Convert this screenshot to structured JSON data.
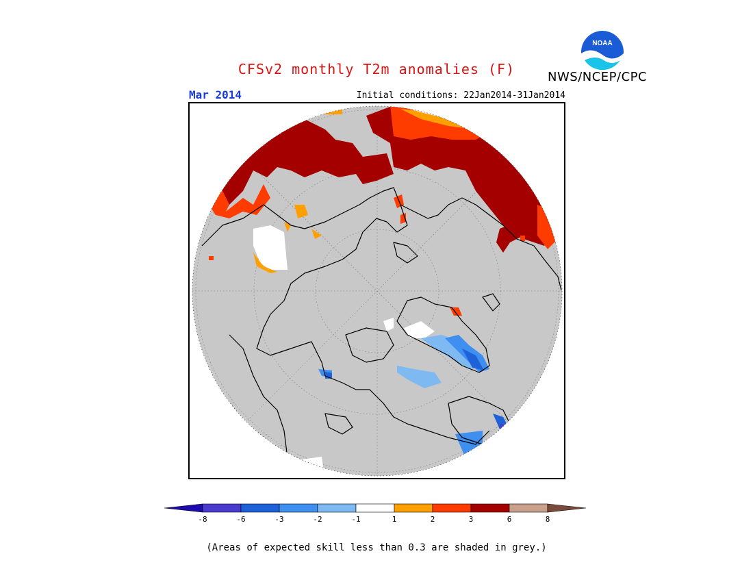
{
  "title": "CFSv2 monthly T2m anomalies (F)",
  "agency": "NWS/NCEP/CPC",
  "logo": {
    "icon": "noaa-logo",
    "text": "NOAA",
    "color": "#1a5bd6"
  },
  "month": "Mar 2014",
  "initial_conditions": "Initial conditions: 22Jan2014-31Jan2014",
  "map": {
    "projection": "north-polar-stereographic",
    "background_color": "#c8c8c8",
    "graticule": "dotted"
  },
  "legend": {
    "ticks": [
      "-8",
      "-6",
      "-3",
      "-2",
      "-1",
      "1",
      "2",
      "3",
      "6",
      "8"
    ],
    "bins": [
      {
        "range": "< -8",
        "color": "#1e0bb0"
      },
      {
        "range": "-8 to -6",
        "color": "#4b3cd0"
      },
      {
        "range": "-6 to -3",
        "color": "#1f62d8"
      },
      {
        "range": "-3 to -2",
        "color": "#3f8ff0"
      },
      {
        "range": "-2 to -1",
        "color": "#7fb9f2"
      },
      {
        "range": "-1 to 1",
        "color": "#ffffff"
      },
      {
        "range": "1 to 2",
        "color": "#ffa000"
      },
      {
        "range": "2 to 3",
        "color": "#ff3c00"
      },
      {
        "range": "3 to 6",
        "color": "#a50000"
      },
      {
        "range": "6 to 8",
        "color": "#c9a08c"
      },
      {
        "range": "> 8",
        "color": "#7a4b3a"
      }
    ]
  },
  "footnote": "(Areas of expected skill less than 0.3 are shaded in grey.)"
}
